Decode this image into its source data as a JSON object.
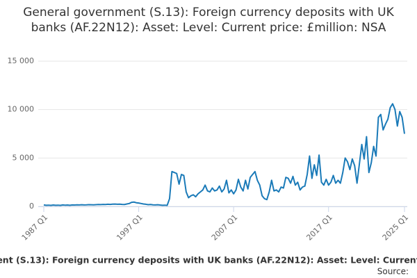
{
  "chart_data": {
    "type": "line",
    "title": "General government (S.13): Foreign currency deposits with UK banks (AF.22N12): Asset: Level: Current price: £million: NSA",
    "footer": "ent (S.13): Foreign currency deposits with UK banks (AF.22N12): Asset: Level: Current",
    "source": "Source:",
    "categories": [
      "1987 Q1",
      null,
      null,
      null,
      null,
      null,
      null,
      null,
      null,
      null,
      null,
      null,
      null,
      null,
      null,
      null,
      null,
      null,
      null,
      null,
      null,
      null,
      null,
      null,
      null,
      null,
      null,
      null,
      null,
      null,
      null,
      null,
      null,
      null,
      null,
      null,
      null,
      null,
      null,
      null,
      "1997 Q1",
      null,
      null,
      null,
      null,
      null,
      null,
      null,
      null,
      null,
      null,
      null,
      null,
      null,
      null,
      null,
      null,
      null,
      null,
      null,
      null,
      null,
      null,
      null,
      null,
      null,
      null,
      null,
      null,
      null,
      null,
      null,
      null,
      null,
      null,
      null,
      null,
      null,
      null,
      null,
      "2007 Q1",
      null,
      null,
      null,
      null,
      null,
      null,
      null,
      null,
      null,
      null,
      null,
      null,
      null,
      null,
      null,
      null,
      null,
      null,
      null,
      null,
      null,
      null,
      null,
      null,
      null,
      null,
      null,
      null,
      null,
      null,
      null,
      null,
      null,
      null,
      null,
      null,
      null,
      null,
      null,
      "2017 Q1",
      null,
      null,
      null,
      null,
      null,
      null,
      null,
      null,
      null,
      null,
      null,
      null,
      null,
      null,
      null,
      null,
      null,
      null,
      null,
      null,
      null,
      null,
      null,
      null,
      null,
      null,
      null,
      null,
      null,
      null,
      null,
      "2025 Q1"
    ],
    "series": [
      {
        "name": "General government (S.13): Foreign currency deposits with UK banks",
        "color": "#1a7ab8",
        "values": [
          150,
          120,
          130,
          110,
          140,
          120,
          130,
          110,
          150,
          130,
          140,
          120,
          150,
          140,
          160,
          150,
          170,
          150,
          160,
          180,
          170,
          160,
          180,
          200,
          190,
          210,
          200,
          220,
          210,
          230,
          240,
          220,
          230,
          210,
          200,
          250,
          300,
          420,
          450,
          380,
          350,
          300,
          250,
          220,
          180,
          200,
          160,
          150,
          170,
          140,
          120,
          130,
          110,
          800,
          3600,
          3500,
          3400,
          2300,
          3300,
          3200,
          1500,
          900,
          1100,
          1200,
          1000,
          1300,
          1500,
          1700,
          2200,
          1600,
          1500,
          1900,
          1600,
          1700,
          2100,
          1500,
          1800,
          2700,
          1400,
          1700,
          1300,
          1700,
          2800,
          2000,
          1600,
          2700,
          1800,
          3000,
          3300,
          3600,
          2700,
          2200,
          1100,
          800,
          700,
          1500,
          2700,
          1600,
          1700,
          1500,
          2000,
          1900,
          3000,
          2900,
          2400,
          3100,
          2200,
          2500,
          1700,
          2000,
          2100,
          3300,
          5200,
          2900,
          4300,
          3200,
          5300,
          2500,
          2200,
          2800,
          2200,
          2500,
          3200,
          2400,
          2700,
          2400,
          3500,
          5000,
          4600,
          3800,
          4900,
          4200,
          2400,
          4400,
          6400,
          4900,
          7200,
          3500,
          4500,
          6200,
          5200,
          9200,
          9500,
          7900,
          8500,
          9000,
          10200,
          10600,
          10000,
          8300,
          9800,
          9200,
          7500
        ]
      }
    ],
    "ylim": [
      0,
      15000
    ],
    "yticks": [
      0,
      {
        "value": 5000,
        "label": "5 000"
      },
      {
        "value": 10000,
        "label": "10 000"
      },
      {
        "value": 15000,
        "label": "15 000"
      }
    ],
    "grid": true
  }
}
